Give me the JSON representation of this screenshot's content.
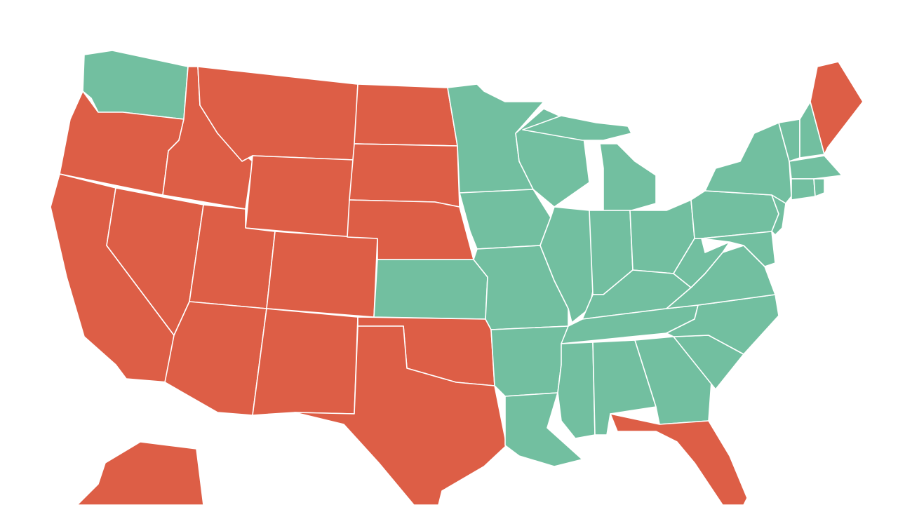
{
  "map": {
    "colors": [
      "#dd5e46",
      "#72bfa0"
    ]
  }
}
